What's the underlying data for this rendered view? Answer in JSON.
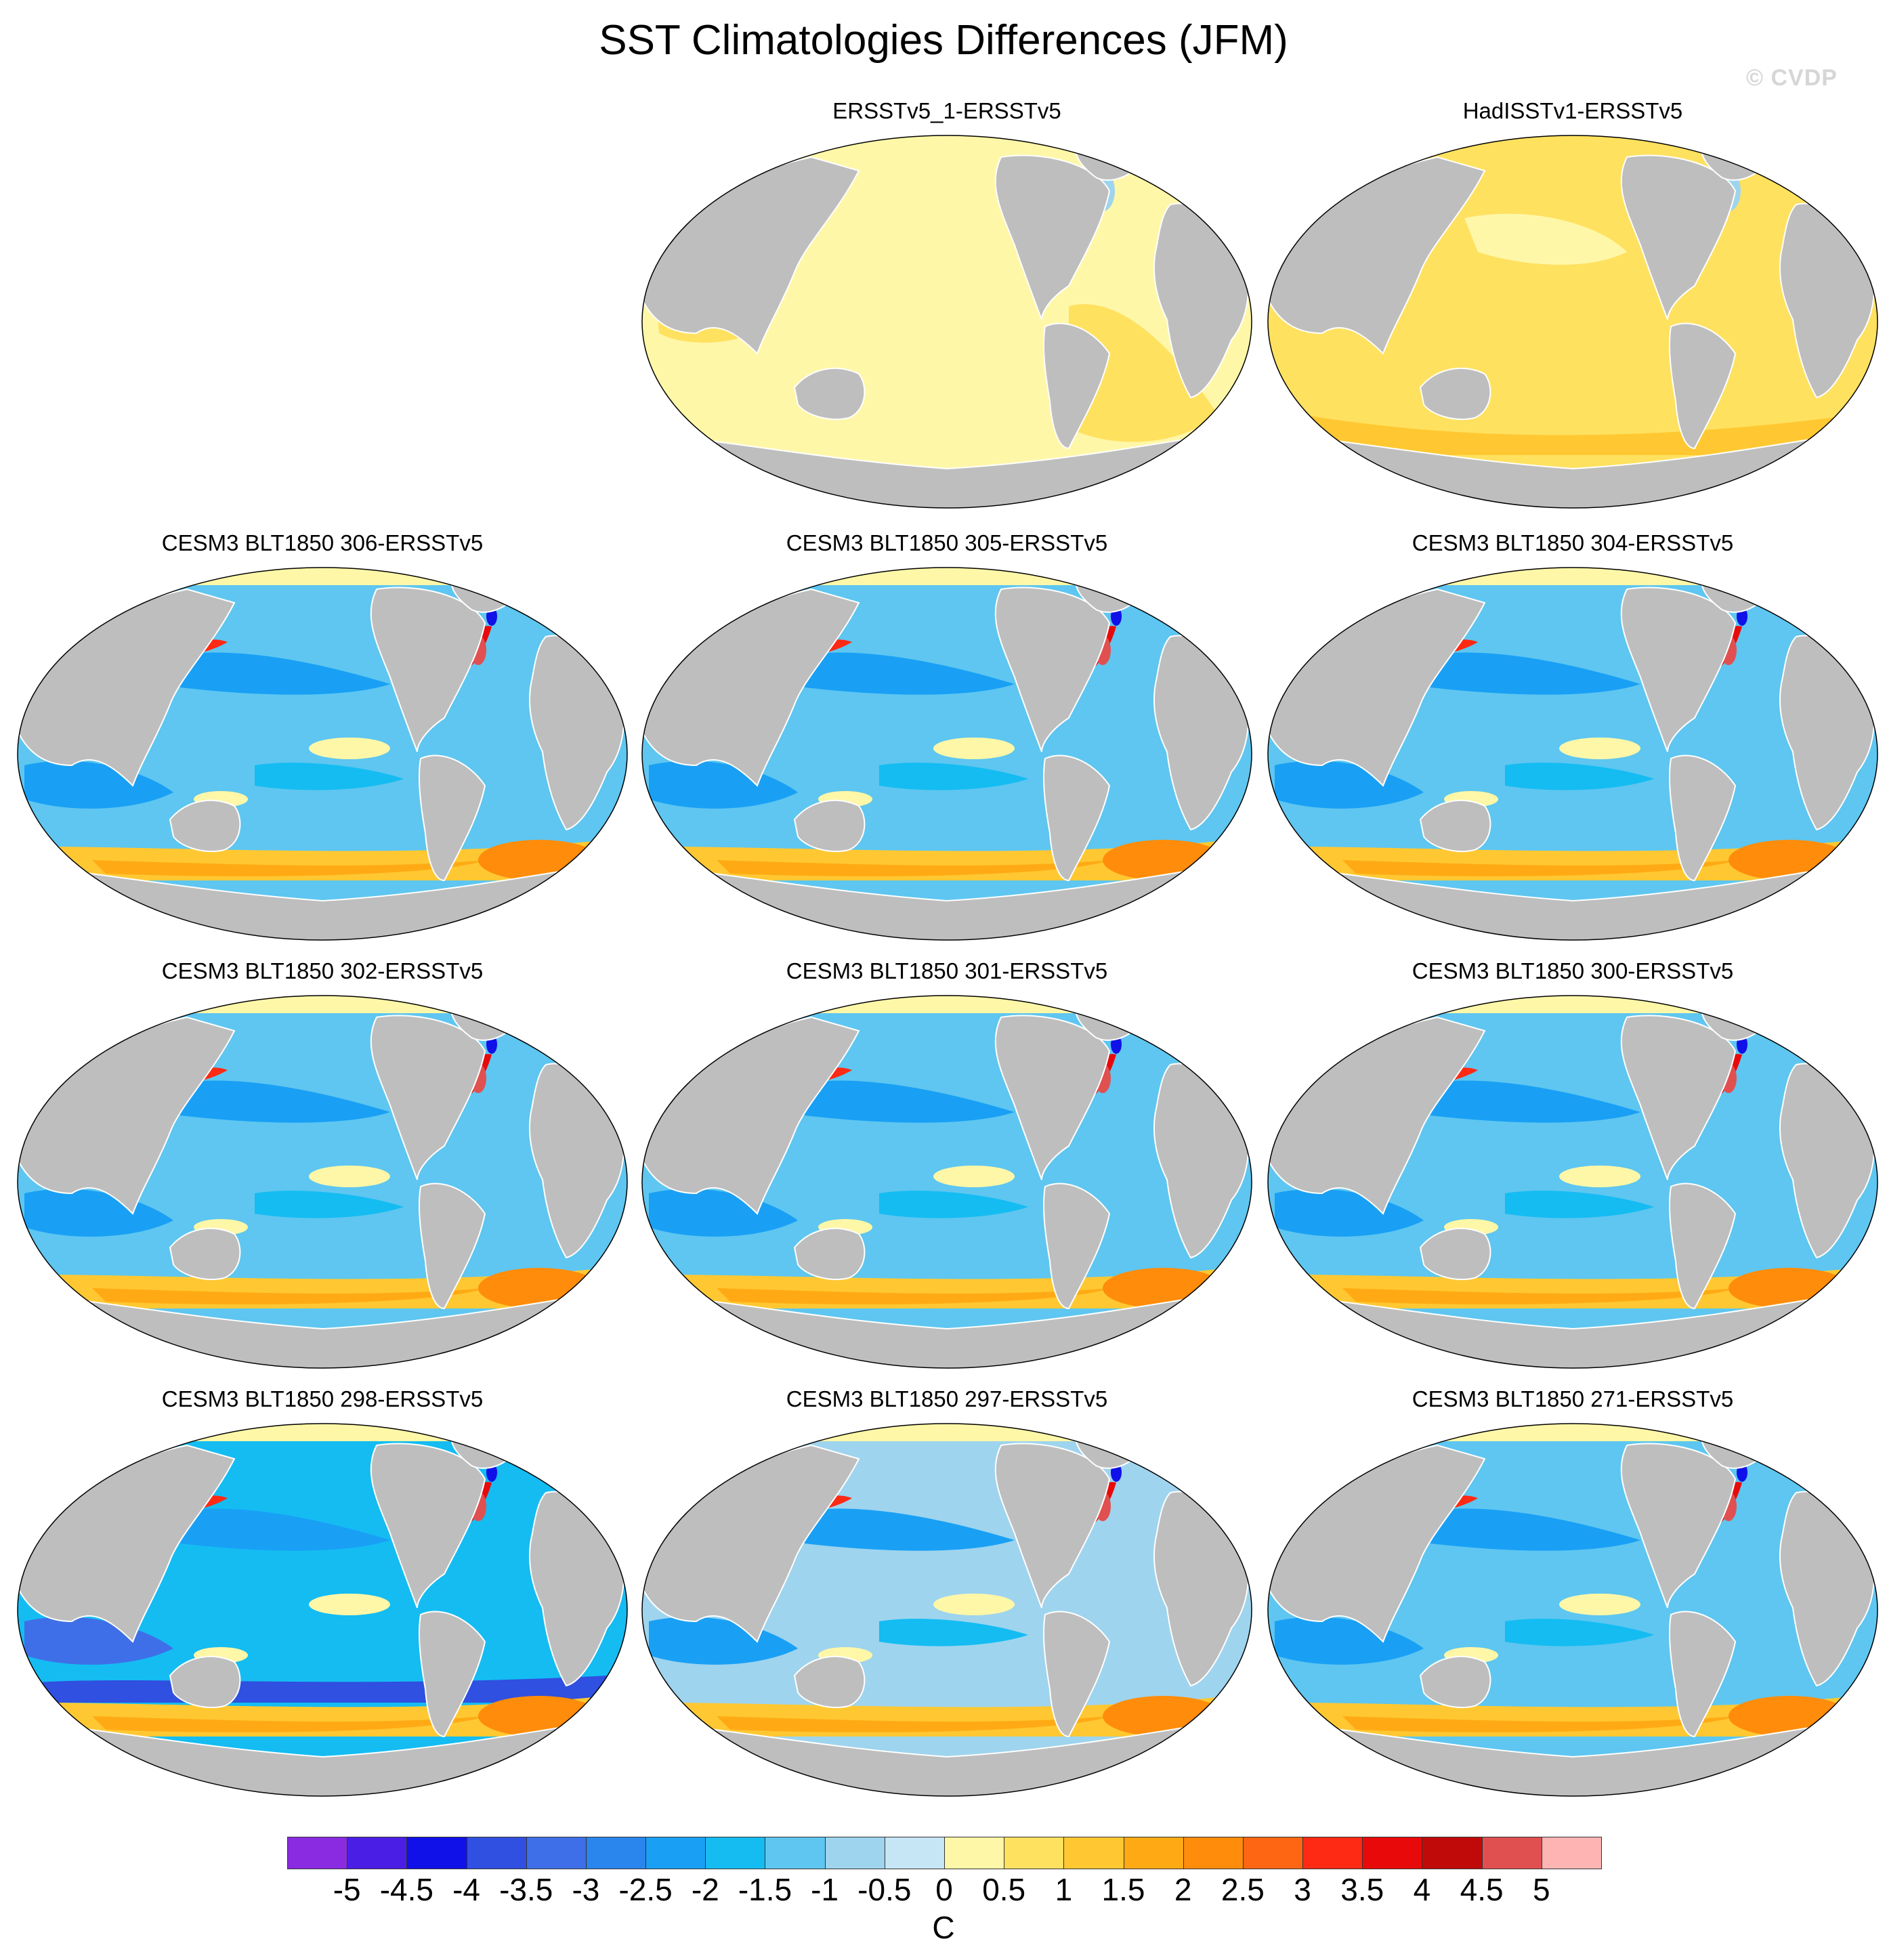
{
  "title": "SST Climatologies Differences (JFM)",
  "watermark": "© CVDP",
  "panels": [
    {
      "id": "p1",
      "title": "ERSSTv5_1-ERSSTv5",
      "scheme": "obs_small"
    },
    {
      "id": "p2",
      "title": "HadISSTv1-ERSSTv5",
      "scheme": "obs_warm"
    },
    {
      "id": "p3",
      "title": "CESM3 BLT1850 306-ERSSTv5",
      "scheme": "model"
    },
    {
      "id": "p4",
      "title": "CESM3 BLT1850 305-ERSSTv5",
      "scheme": "model"
    },
    {
      "id": "p5",
      "title": "CESM3 BLT1850 304-ERSSTv5",
      "scheme": "model"
    },
    {
      "id": "p6",
      "title": "CESM3 BLT1850 302-ERSSTv5",
      "scheme": "model"
    },
    {
      "id": "p7",
      "title": "CESM3 BLT1850 301-ERSSTv5",
      "scheme": "model"
    },
    {
      "id": "p8",
      "title": "CESM3 BLT1850 300-ERSSTv5",
      "scheme": "model"
    },
    {
      "id": "p9",
      "title": "CESM3 BLT1850 298-ERSSTv5",
      "scheme": "model_cold"
    },
    {
      "id": "p10",
      "title": "CESM3 BLT1850 297-ERSSTv5",
      "scheme": "model_mild"
    },
    {
      "id": "p11",
      "title": "CESM3 BLT1850 271-ERSSTv5",
      "scheme": "model"
    }
  ],
  "colorbar": {
    "units": "C",
    "ticks": [
      "-5",
      "-4.5",
      "-4",
      "-3.5",
      "-3",
      "-2.5",
      "-2",
      "-1.5",
      "-1",
      "-0.5",
      "0",
      "0.5",
      "1",
      "1.5",
      "2",
      "2.5",
      "3",
      "3.5",
      "4",
      "4.5",
      "5"
    ],
    "colors": [
      "#8a2be2",
      "#4b1ee6",
      "#1010e8",
      "#2f50e0",
      "#3f6fe8",
      "#2a86ec",
      "#19a0f5",
      "#14bcf2",
      "#5ec6f0",
      "#9ed4ee",
      "#c6e6f5",
      "#fff7a8",
      "#ffe160",
      "#ffc832",
      "#ffaa14",
      "#ff8c0a",
      "#ff6614",
      "#ff2a14",
      "#e80a0a",
      "#c00a0a",
      "#e05050",
      "#ffb4b4"
    ]
  }
}
